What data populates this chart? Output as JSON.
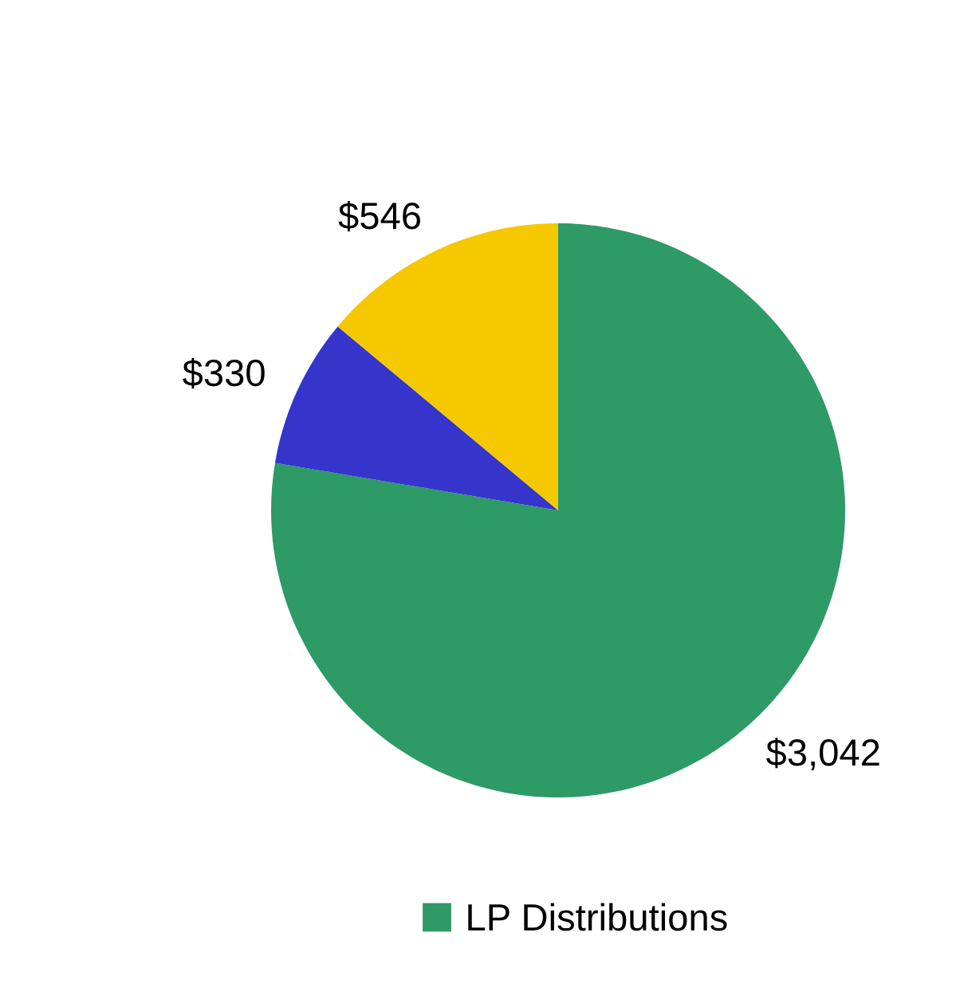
{
  "chart_data": {
    "type": "pie",
    "categories": [
      "LP Distributions",
      null,
      null
    ],
    "values": [
      3042,
      330,
      546
    ],
    "colors": [
      "#2e9a66",
      "#3535cc",
      "#f5c800"
    ],
    "value_labels": [
      "$3,042",
      "$330",
      "$546"
    ],
    "legend": "bottom"
  }
}
